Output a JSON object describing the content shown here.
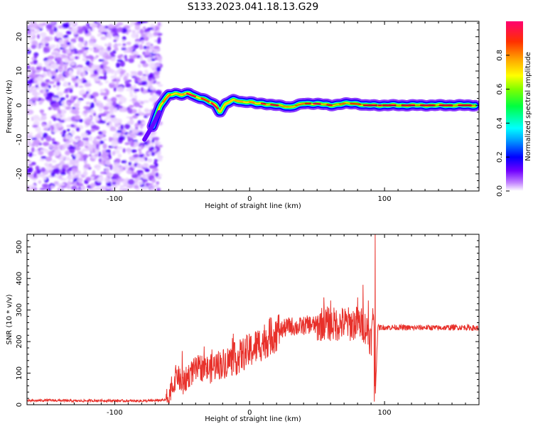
{
  "title": "S133.2023.041.18.13.G29",
  "chart_data": [
    {
      "type": "heatmap",
      "xlabel": "Height of straight line (km)",
      "ylabel": "Frequency (Hz)",
      "xlim": [
        -165,
        170
      ],
      "ylim": [
        -25,
        24.5
      ],
      "x_ticks": [
        -100,
        0,
        100
      ],
      "x_tick_labels": [
        "-100",
        "0",
        "100"
      ],
      "y_ticks": [
        -20,
        -10,
        0,
        10,
        20
      ],
      "y_tick_labels": [
        "-20",
        "-10",
        "0",
        "10",
        "20"
      ],
      "grid": false,
      "colorbar": {
        "label": "Normalized spectral amplitude",
        "range": [
          0,
          1
        ],
        "ticks": [
          0.0,
          0.2,
          0.4,
          0.6,
          0.8
        ],
        "tick_labels": [
          "0.0",
          "0.2",
          "0.4",
          "0.6",
          "0.8"
        ],
        "colormap": [
          "#ffffff",
          "#c080ff",
          "#6000ff",
          "#0000ff",
          "#00a0ff",
          "#00ffff",
          "#00ff60",
          "#00ff00",
          "#a0ff00",
          "#ffff00",
          "#ffa000",
          "#ff4000",
          "#ff0040",
          "#ff0080"
        ]
      },
      "ridge": {
        "description_points_x": [
          -72,
          -66,
          -60,
          -55,
          -50,
          -45,
          -40,
          -35,
          -30,
          -25,
          -22,
          -18,
          -12,
          -5,
          0,
          5,
          10,
          20,
          30,
          40,
          50,
          60,
          70,
          80,
          85,
          95,
          110,
          130,
          150,
          168
        ],
        "description_points_y": [
          -6,
          0,
          3,
          3.5,
          3,
          3.5,
          2.5,
          2,
          1,
          0,
          -2,
          0.5,
          1.5,
          1,
          1,
          0.5,
          0.5,
          0,
          -0.5,
          0.5,
          0.5,
          0,
          0.5,
          0.5,
          0,
          0,
          0,
          0,
          0,
          0
        ],
        "peak_amplitude": 0.95
      },
      "noise_region_x": [
        -165,
        -72
      ]
    },
    {
      "type": "line",
      "xlabel": "Height of straight line (km)",
      "ylabel": "SNR (10 * v/v)",
      "xlim": [
        -165,
        170
      ],
      "ylim": [
        0,
        540
      ],
      "x_ticks": [
        -100,
        0,
        100
      ],
      "x_tick_labels": [
        "-100",
        "0",
        "100"
      ],
      "y_ticks": [
        0,
        100,
        200,
        300,
        400,
        500
      ],
      "y_tick_labels": [
        "0",
        "100",
        "200",
        "300",
        "400",
        "500"
      ],
      "grid": false,
      "series": [
        {
          "color": "#e8302a",
          "x": [
            -165,
            -150,
            -130,
            -110,
            -90,
            -75,
            -62,
            -58,
            -54,
            -50,
            -45,
            -40,
            -35,
            -30,
            -25,
            -20,
            -15,
            -10,
            -5,
            0,
            5,
            10,
            15,
            20,
            25,
            30,
            35,
            40,
            45,
            50,
            55,
            60,
            65,
            70,
            75,
            80,
            85,
            88,
            90,
            92,
            93,
            95,
            100,
            110,
            120,
            130,
            140,
            150,
            160,
            170
          ],
          "y": [
            12,
            14,
            12,
            13,
            12,
            12,
            15,
            40,
            100,
            60,
            95,
            110,
            120,
            110,
            125,
            130,
            140,
            145,
            160,
            170,
            185,
            200,
            215,
            230,
            240,
            250,
            245,
            250,
            255,
            250,
            260,
            255,
            255,
            258,
            255,
            260,
            250,
            230,
            200,
            300,
            10,
            245,
            245,
            245,
            243,
            245,
            243,
            245,
            245,
            242
          ],
          "spikes": {
            "x": [
              -50,
              -28,
              -12,
              55,
              60,
              80,
              84,
              88,
              93,
              92.5
            ],
            "y": [
              170,
              175,
              225,
              340,
              330,
              340,
              380,
              330,
              540,
              10
            ]
          }
        }
      ]
    }
  ]
}
